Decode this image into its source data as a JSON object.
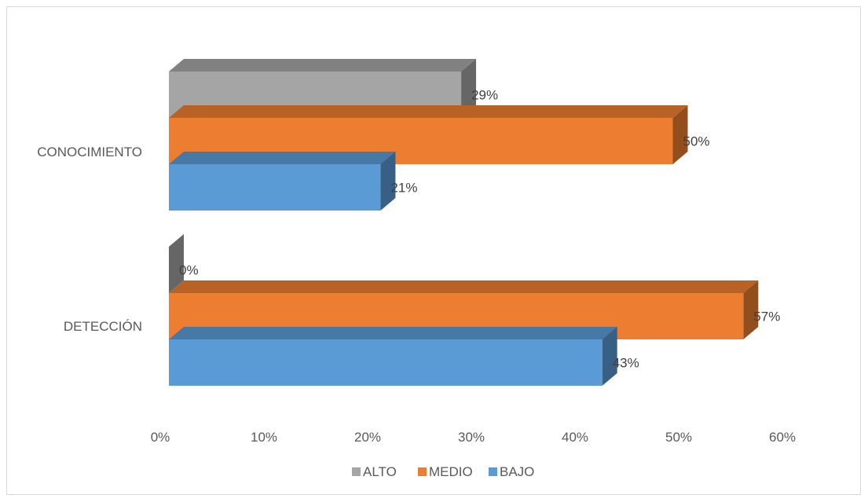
{
  "chart_data": {
    "type": "bar",
    "orientation": "horizontal",
    "style": "3d-clustered",
    "categories": [
      "CONOCIMIENTO",
      "DETECCIÓN"
    ],
    "series": [
      {
        "name": "ALTO",
        "values": [
          29,
          0
        ],
        "color": "#A5A5A5",
        "data_labels": [
          "29%",
          "0%"
        ]
      },
      {
        "name": "MEDIO",
        "values": [
          50,
          57
        ],
        "color": "#ED7D31",
        "data_labels": [
          "50%",
          "57%"
        ]
      },
      {
        "name": "BAJO",
        "values": [
          21,
          43
        ],
        "color": "#5B9BD5",
        "data_labels": [
          "21%",
          "43%"
        ]
      }
    ],
    "x_ticks": [
      "0%",
      "10%",
      "20%",
      "30%",
      "40%",
      "50%",
      "60%"
    ],
    "xlim": [
      0,
      60
    ],
    "grid": false,
    "legend_position": "bottom"
  }
}
